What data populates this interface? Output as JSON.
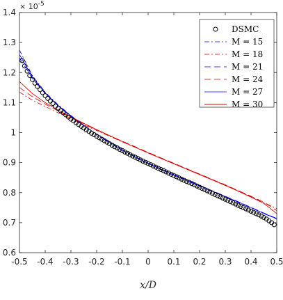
{
  "chart_data": {
    "type": "line",
    "title": "",
    "xlabel": "x/D",
    "ylabel": "",
    "y_exponent_label": "× 10",
    "y_exponent_power": "-5",
    "xlim": [
      -0.5,
      0.5
    ],
    "ylim": [
      0.6,
      1.4
    ],
    "xticks": [
      "-0.5",
      "-0.4",
      "-0.3",
      "-0.2",
      "-0.1",
      "0",
      "0.1",
      "0.2",
      "0.3",
      "0.4",
      "0.5"
    ],
    "yticks": [
      "0.6",
      "0.7",
      "0.8",
      "0.9",
      "1",
      "1.1",
      "1.2",
      "1.3",
      "1.4"
    ],
    "grid": false,
    "legend_position": "top-right",
    "markers": {
      "name": "DSMC",
      "x": [
        -0.49,
        -0.48,
        -0.47,
        -0.46,
        -0.45,
        -0.44,
        -0.43,
        -0.42,
        -0.41,
        -0.4,
        -0.39,
        -0.38,
        -0.37,
        -0.36,
        -0.35,
        -0.34,
        -0.33,
        -0.32,
        -0.31,
        -0.3,
        -0.29,
        -0.28,
        -0.27,
        -0.26,
        -0.25,
        -0.24,
        -0.23,
        -0.22,
        -0.21,
        -0.2,
        -0.19,
        -0.18,
        -0.17,
        -0.16,
        -0.15,
        -0.14,
        -0.13,
        -0.12,
        -0.11,
        -0.1,
        -0.09,
        -0.08,
        -0.07,
        -0.06,
        -0.05,
        -0.04,
        -0.03,
        -0.02,
        -0.01,
        0.0,
        0.01,
        0.02,
        0.03,
        0.04,
        0.05,
        0.06,
        0.07,
        0.08,
        0.09,
        0.1,
        0.11,
        0.12,
        0.13,
        0.14,
        0.15,
        0.16,
        0.17,
        0.18,
        0.19,
        0.2,
        0.21,
        0.22,
        0.23,
        0.24,
        0.25,
        0.26,
        0.27,
        0.28,
        0.29,
        0.3,
        0.31,
        0.32,
        0.33,
        0.34,
        0.35,
        0.36,
        0.37,
        0.38,
        0.39,
        0.4,
        0.41,
        0.42,
        0.43,
        0.44,
        0.45,
        0.46,
        0.47,
        0.48,
        0.49
      ],
      "y": [
        1.24,
        1.222,
        1.205,
        1.19,
        1.177,
        1.165,
        1.154,
        1.143,
        1.133,
        1.123,
        1.114,
        1.105,
        1.097,
        1.088,
        1.081,
        1.073,
        1.066,
        1.059,
        1.052,
        1.045,
        1.039,
        1.033,
        1.027,
        1.021,
        1.015,
        1.009,
        1.004,
        0.998,
        0.993,
        0.988,
        0.983,
        0.978,
        0.973,
        0.968,
        0.963,
        0.958,
        0.953,
        0.949,
        0.944,
        0.94,
        0.935,
        0.931,
        0.926,
        0.922,
        0.918,
        0.914,
        0.909,
        0.905,
        0.901,
        0.897,
        0.893,
        0.889,
        0.885,
        0.881,
        0.877,
        0.873,
        0.869,
        0.865,
        0.861,
        0.857,
        0.853,
        0.849,
        0.845,
        0.841,
        0.837,
        0.834,
        0.83,
        0.826,
        0.822,
        0.818,
        0.814,
        0.81,
        0.806,
        0.802,
        0.798,
        0.794,
        0.79,
        0.786,
        0.782,
        0.778,
        0.774,
        0.77,
        0.766,
        0.762,
        0.758,
        0.754,
        0.75,
        0.746,
        0.742,
        0.738,
        0.734,
        0.73,
        0.726,
        0.722,
        0.717,
        0.712,
        0.706,
        0.7,
        0.693
      ]
    },
    "series": [
      {
        "name": "M = 15",
        "color": "#0000ff",
        "dash": "7,3,2,3",
        "width": 0.8,
        "x": [
          -0.5,
          -0.45,
          -0.4,
          -0.35,
          -0.3,
          -0.25,
          -0.2,
          -0.15,
          -0.1,
          -0.05,
          0,
          0.05,
          0.1,
          0.15,
          0.2,
          0.25,
          0.3,
          0.35,
          0.4,
          0.45,
          0.5
        ],
        "y": [
          1.275,
          1.19,
          1.135,
          1.093,
          1.057,
          1.024,
          0.994,
          0.966,
          0.941,
          0.918,
          0.897,
          0.877,
          0.858,
          0.84,
          0.822,
          0.804,
          0.786,
          0.768,
          0.749,
          0.73,
          0.712
        ]
      },
      {
        "name": "M = 18",
        "color": "#cc0000",
        "dash": "7,3,2,3",
        "width": 0.8,
        "x": [
          -0.5,
          -0.45,
          -0.4,
          -0.35,
          -0.3,
          -0.25,
          -0.2,
          -0.15,
          -0.1,
          -0.05,
          0,
          0.05,
          0.1,
          0.15,
          0.2,
          0.25,
          0.3,
          0.35,
          0.4,
          0.45,
          0.5
        ],
        "y": [
          1.135,
          1.108,
          1.087,
          1.066,
          1.046,
          1.026,
          1.007,
          0.988,
          0.969,
          0.951,
          0.933,
          0.915,
          0.897,
          0.879,
          0.861,
          0.843,
          0.825,
          0.806,
          0.787,
          0.767,
          0.747
        ]
      },
      {
        "name": "M = 21",
        "color": "#0000ff",
        "dash": "9,5",
        "width": 0.8,
        "x": [
          -0.5,
          -0.45,
          -0.4,
          -0.35,
          -0.3,
          -0.25,
          -0.2,
          -0.15,
          -0.1,
          -0.05,
          0,
          0.05,
          0.1,
          0.15,
          0.2,
          0.25,
          0.3,
          0.35,
          0.4,
          0.45,
          0.5
        ],
        "y": [
          1.25,
          1.18,
          1.13,
          1.09,
          1.055,
          1.024,
          0.995,
          0.968,
          0.943,
          0.92,
          0.899,
          0.879,
          0.86,
          0.842,
          0.824,
          0.806,
          0.788,
          0.77,
          0.751,
          0.732,
          0.714
        ]
      },
      {
        "name": "M = 24",
        "color": "#cc0000",
        "dash": "9,5",
        "width": 0.8,
        "x": [
          -0.5,
          -0.45,
          -0.4,
          -0.35,
          -0.3,
          -0.25,
          -0.2,
          -0.15,
          -0.1,
          -0.05,
          0,
          0.05,
          0.1,
          0.15,
          0.2,
          0.25,
          0.3,
          0.35,
          0.4,
          0.45,
          0.5
        ],
        "y": [
          1.15,
          1.12,
          1.095,
          1.072,
          1.05,
          1.029,
          1.009,
          0.99,
          0.971,
          0.953,
          0.934,
          0.916,
          0.898,
          0.88,
          0.862,
          0.844,
          0.826,
          0.807,
          0.788,
          0.768,
          0.74
        ]
      },
      {
        "name": "M = 27",
        "color": "#0000ff",
        "dash": "",
        "width": 0.8,
        "x": [
          -0.5,
          -0.45,
          -0.4,
          -0.35,
          -0.3,
          -0.25,
          -0.2,
          -0.15,
          -0.1,
          -0.05,
          0,
          0.05,
          0.1,
          0.15,
          0.2,
          0.25,
          0.3,
          0.35,
          0.4,
          0.45,
          0.5
        ],
        "y": [
          1.26,
          1.185,
          1.132,
          1.091,
          1.056,
          1.024,
          0.995,
          0.968,
          0.942,
          0.919,
          0.898,
          0.878,
          0.859,
          0.841,
          0.823,
          0.805,
          0.787,
          0.769,
          0.75,
          0.731,
          0.713
        ]
      },
      {
        "name": "M = 30",
        "color": "#dd0000",
        "dash": "",
        "width": 0.9,
        "x": [
          -0.5,
          -0.45,
          -0.4,
          -0.35,
          -0.3,
          -0.25,
          -0.2,
          -0.15,
          -0.1,
          -0.05,
          0,
          0.05,
          0.1,
          0.15,
          0.2,
          0.25,
          0.3,
          0.35,
          0.4,
          0.45,
          0.5
        ],
        "y": [
          1.17,
          1.13,
          1.1,
          1.075,
          1.052,
          1.031,
          1.01,
          0.99,
          0.97,
          0.951,
          0.932,
          0.914,
          0.896,
          0.878,
          0.86,
          0.842,
          0.824,
          0.805,
          0.785,
          0.764,
          0.73
        ]
      }
    ]
  }
}
